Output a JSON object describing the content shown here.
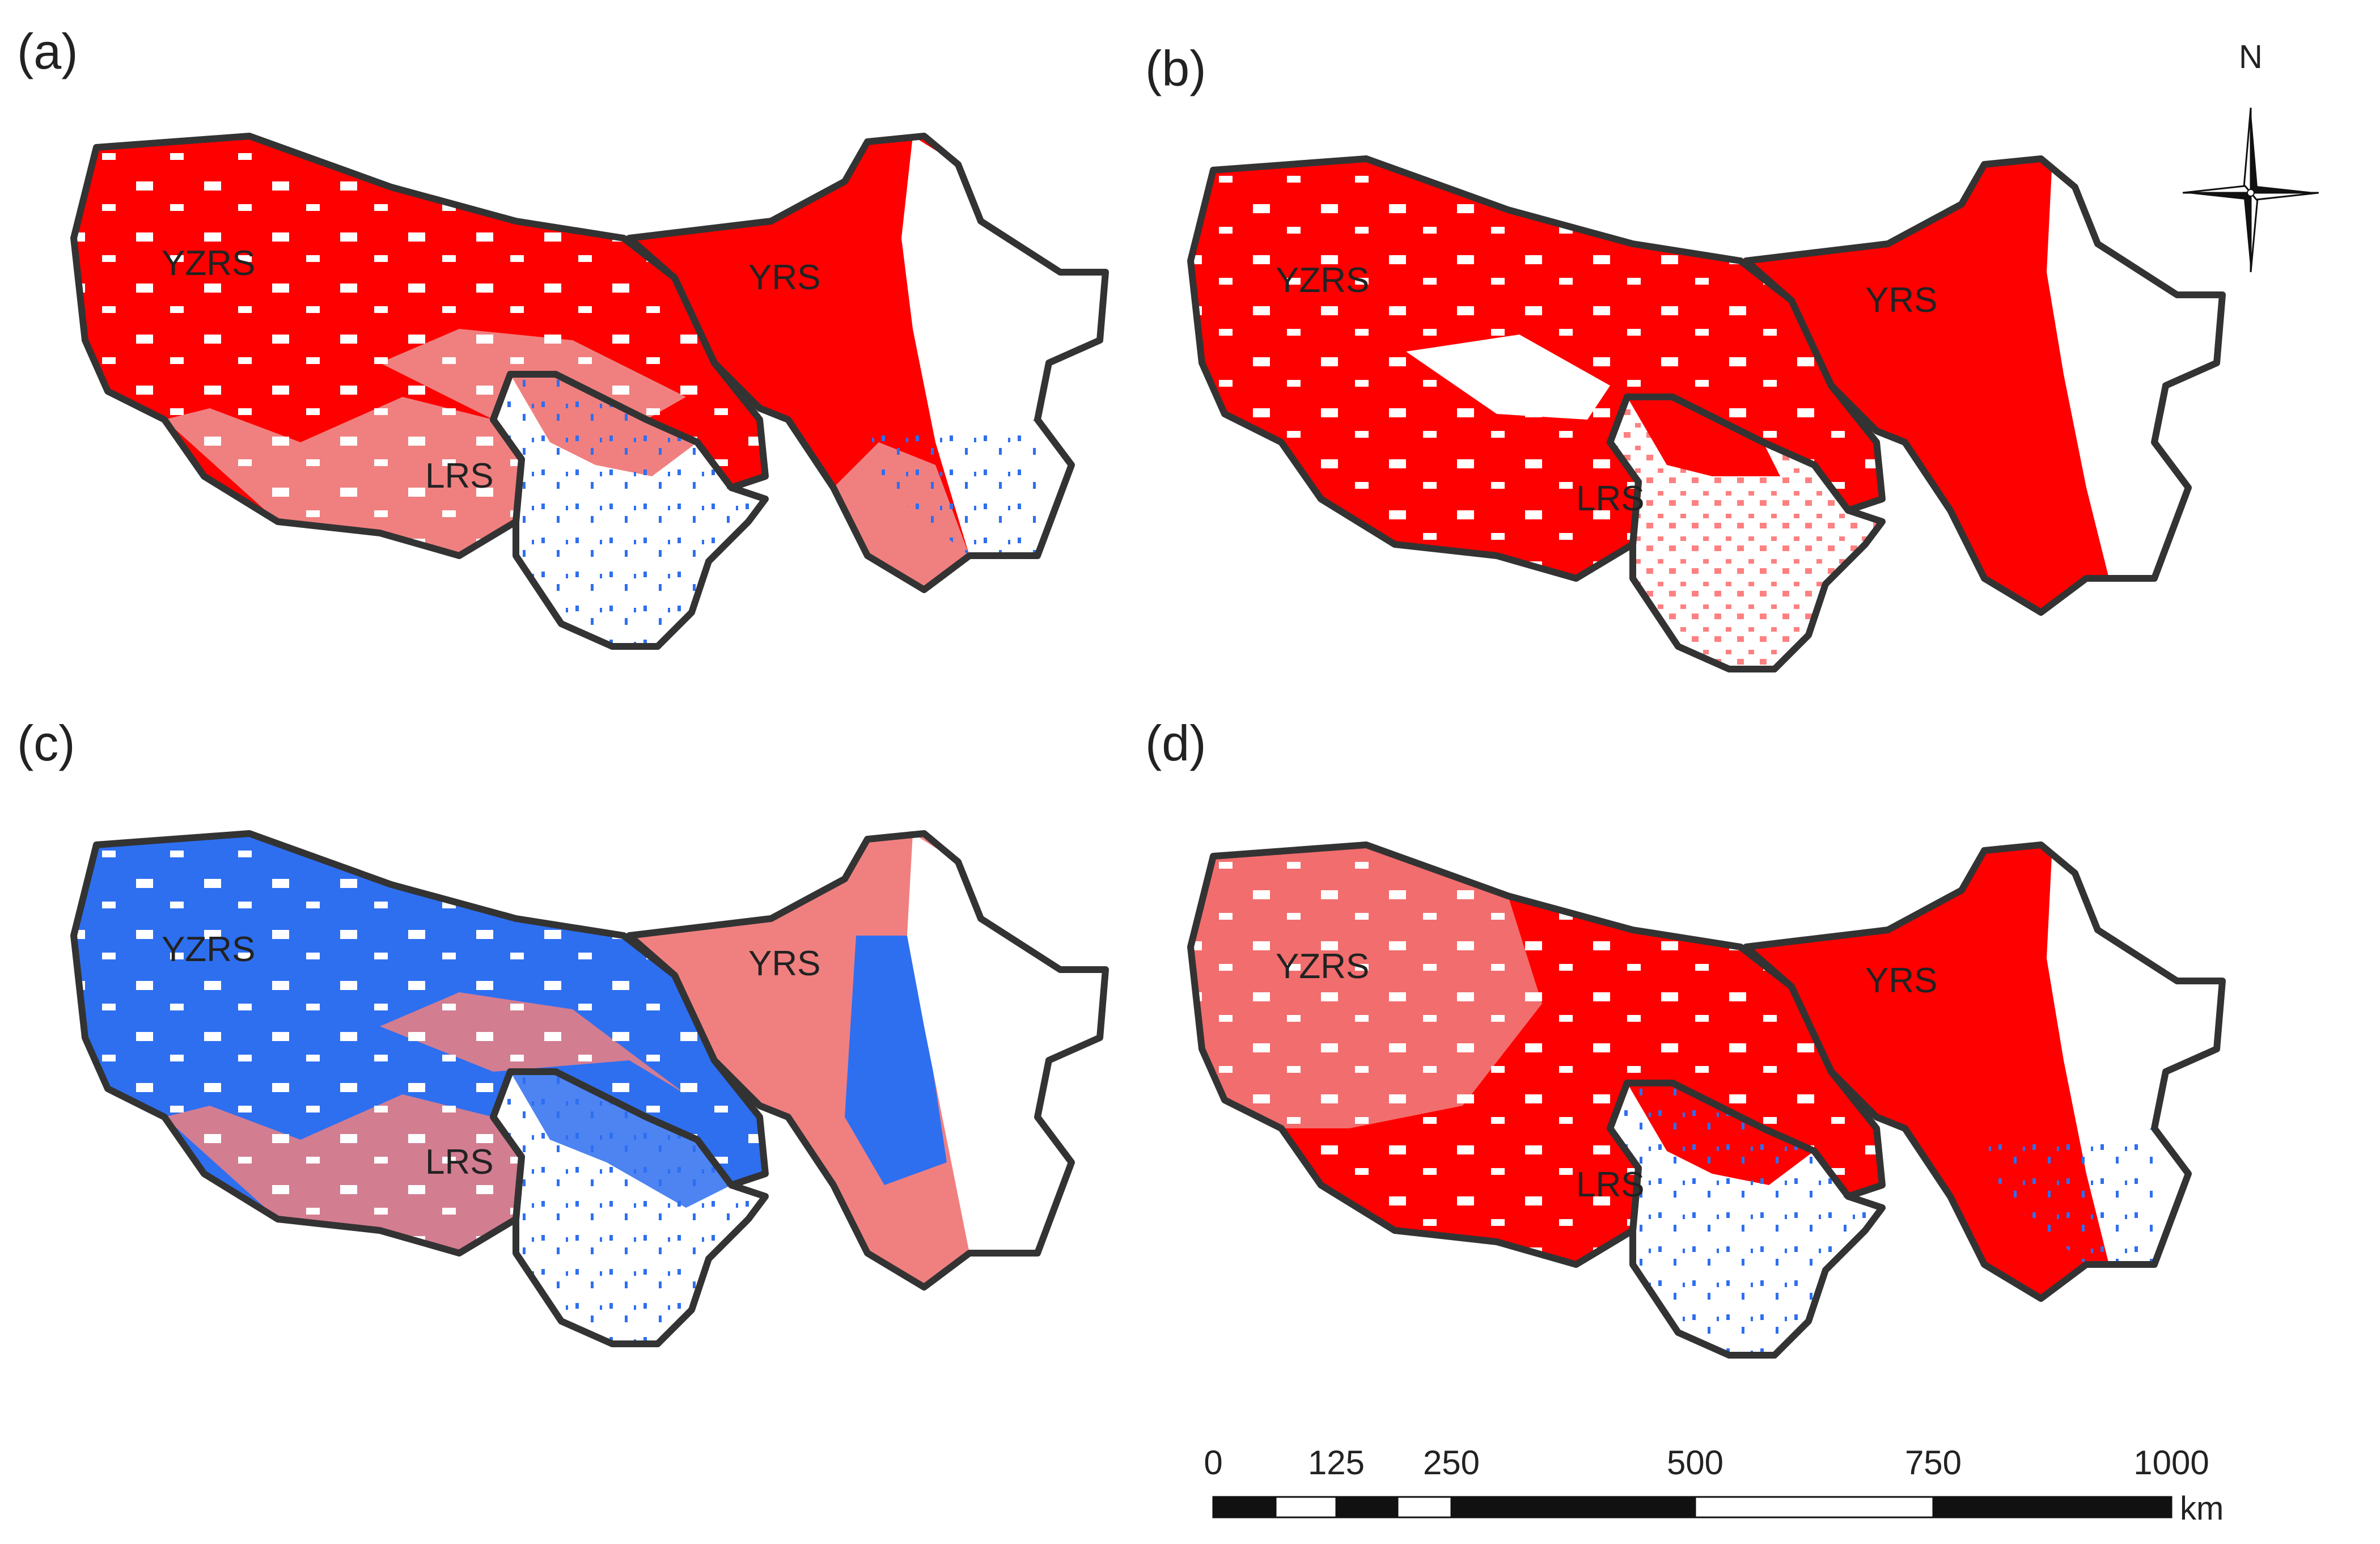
{
  "panels": [
    {
      "label": "(a)",
      "region_labels": {
        "yzrs": "YZRS",
        "yrs": "YRS",
        "lrs": "LRS"
      }
    },
    {
      "label": "(b)",
      "region_labels": {
        "yzrs": "YZRS",
        "yrs": "YRS",
        "lrs": "LRS"
      }
    },
    {
      "label": "(c)",
      "region_labels": {
        "yzrs": "YZRS",
        "yrs": "YRS",
        "lrs": "LRS"
      }
    },
    {
      "label": "(d)",
      "region_labels": {
        "yzrs": "YZRS",
        "yrs": "YRS",
        "lrs": "LRS"
      }
    }
  ],
  "colors": {
    "strong": "#ff0000",
    "weak": "#f08080",
    "negative": "#2e6ff0",
    "none": "#ffffff",
    "outline": "#333333"
  },
  "north_arrow": {
    "label": "N"
  },
  "scale_bar": {
    "ticks": [
      "0",
      "125",
      "250",
      "500",
      "750",
      "1000"
    ],
    "unit": "km"
  }
}
